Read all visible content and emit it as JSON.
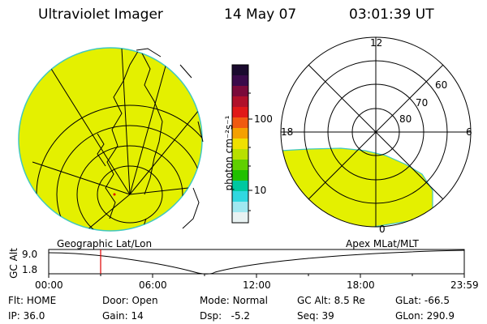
{
  "header": {
    "instrument": "Ultraviolet Imager",
    "date": "14 May 07",
    "time": "03:01:39 UT"
  },
  "colorbar": {
    "unit_label": "photon cm⁻²s⁻¹",
    "ticks": [
      "100",
      "10"
    ],
    "colors": [
      "#1a0a2e",
      "#3a0a4a",
      "#7a0a3a",
      "#b0102a",
      "#e01818",
      "#f05a10",
      "#f5a000",
      "#f0e000",
      "#b8e000",
      "#60d000",
      "#20c000",
      "#00c8a0",
      "#30d8e0",
      "#a0e8f0",
      "#e8f2f2"
    ]
  },
  "left_panel": {
    "label": "Geographic Lat/Lon",
    "fill_color": "#e4f000"
  },
  "right_panel": {
    "label": "Apex MLat/MLT",
    "mlt_labels": [
      "12",
      "18",
      "6",
      "0"
    ],
    "mlat_labels": [
      "60",
      "70",
      "80"
    ],
    "fill_color": "#e4f000"
  },
  "timeline": {
    "ylabel": "GC Alt",
    "y_ticks": [
      "9.0",
      "1.8"
    ],
    "x_ticks": [
      "00:00",
      "06:00",
      "12:00",
      "18:00",
      "23:59"
    ],
    "marker_color": "#e00000"
  },
  "info": {
    "row1": [
      {
        "key": "Flt:",
        "val": "HOME"
      },
      {
        "key": "Door:",
        "val": "Open"
      },
      {
        "key": "Mode:",
        "val": "Normal"
      },
      {
        "key": "GC Alt:",
        "val": "8.5 Re"
      },
      {
        "key": "GLat:",
        "val": "-66.5"
      }
    ],
    "row2": [
      {
        "key": "IP:",
        "val": "36.0"
      },
      {
        "key": "Gain:",
        "val": "14"
      },
      {
        "key": "Dsp:",
        "val": "-5.2"
      },
      {
        "key": "Seq:",
        "val": "39"
      },
      {
        "key": "GLon:",
        "val": "290.9"
      }
    ]
  }
}
